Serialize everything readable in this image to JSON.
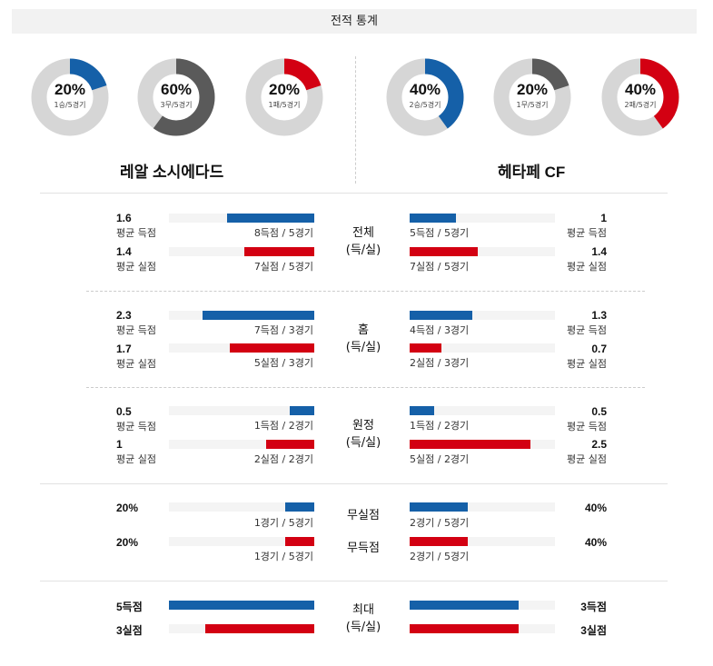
{
  "header": {
    "title": "전적 통계"
  },
  "donuts": [
    {
      "pct": "20%",
      "sub": "1승/5경기",
      "fraction": 0.2,
      "color": "#1560a8"
    },
    {
      "pct": "60%",
      "sub": "3무/5경기",
      "fraction": 0.6,
      "color": "#5a5a5a"
    },
    {
      "pct": "20%",
      "sub": "1패/5경기",
      "fraction": 0.2,
      "color": "#d30012"
    },
    {
      "pct": "40%",
      "sub": "2승/5경기",
      "fraction": 0.4,
      "color": "#1560a8"
    },
    {
      "pct": "20%",
      "sub": "1무/5경기",
      "fraction": 0.2,
      "color": "#5a5a5a"
    },
    {
      "pct": "40%",
      "sub": "2패/5경기",
      "fraction": 0.4,
      "color": "#d30012"
    }
  ],
  "teams": {
    "home": "레알 소시에다드",
    "away": "헤타페 CF"
  },
  "labels": {
    "avg_scored": "평균 득점",
    "avg_conceded": "평균 실점"
  },
  "sections": {
    "total": {
      "mid1": "전체",
      "mid2": "(득/실)",
      "home_scored": {
        "value": "1.6",
        "caption": "8득점 / 5경기",
        "fraction": 0.6
      },
      "home_conceded": {
        "value": "1.4",
        "caption": "7실점 / 5경기",
        "fraction": 0.48
      },
      "away_scored": {
        "value": "1",
        "caption": "5득점 / 5경기",
        "fraction": 0.32
      },
      "away_conceded": {
        "value": "1.4",
        "caption": "7실점 / 5경기",
        "fraction": 0.47
      }
    },
    "home": {
      "mid1": "홈",
      "mid2": "(득/실)",
      "home_scored": {
        "value": "2.3",
        "caption": "7득점 / 3경기",
        "fraction": 0.77
      },
      "home_conceded": {
        "value": "1.7",
        "caption": "5실점 / 3경기",
        "fraction": 0.58
      },
      "away_scored": {
        "value": "1.3",
        "caption": "4득점 / 3경기",
        "fraction": 0.43
      },
      "away_conceded": {
        "value": "0.7",
        "caption": "2실점 / 3경기",
        "fraction": 0.22
      }
    },
    "away": {
      "mid1": "원정",
      "mid2": "(득/실)",
      "home_scored": {
        "value": "0.5",
        "caption": "1득점 / 2경기",
        "fraction": 0.17
      },
      "home_conceded": {
        "value": "1",
        "caption": "2실점 / 2경기",
        "fraction": 0.33
      },
      "away_scored": {
        "value": "0.5",
        "caption": "1득점 / 2경기",
        "fraction": 0.17
      },
      "away_conceded": {
        "value": "2.5",
        "caption": "5실점 / 2경기",
        "fraction": 0.83
      }
    }
  },
  "clean": {
    "cs_label": "무실점",
    "ns_label": "무득점",
    "home_cs": {
      "value": "20%",
      "caption": "1경기 / 5경기",
      "fraction": 0.2
    },
    "home_ns": {
      "value": "20%",
      "caption": "1경기 / 5경기",
      "fraction": 0.2
    },
    "away_cs": {
      "value": "40%",
      "caption": "2경기 / 5경기",
      "fraction": 0.4
    },
    "away_ns": {
      "value": "40%",
      "caption": "2경기 / 5경기",
      "fraction": 0.4
    }
  },
  "max": {
    "mid1": "최대",
    "mid2": "(득/실)",
    "home_scored": {
      "value": "5득점",
      "fraction": 1.0
    },
    "home_conceded": {
      "value": "3실점",
      "fraction": 0.75
    },
    "away_scored": {
      "value": "3득점",
      "fraction": 0.75
    },
    "away_conceded": {
      "value": "3실점",
      "fraction": 0.75
    }
  }
}
